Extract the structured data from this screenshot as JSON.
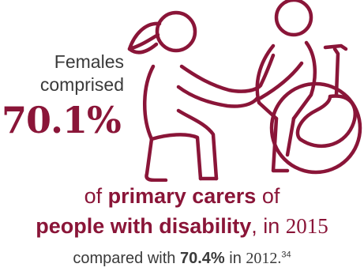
{
  "colors": {
    "accent": "#8a1538",
    "text": "#3a3a3a"
  },
  "illustration": {
    "icon": "carer-kneeling-beside-wheelchair-user-icon"
  },
  "stat": {
    "lead_line1": "Females",
    "lead_line2": "comprised",
    "value": "70.1%"
  },
  "headline": {
    "of": "of",
    "primary_carers": "primary carers",
    "of2": "of",
    "people_with_disability": "people with disability",
    "in": ", in",
    "year": "2015"
  },
  "comparison": {
    "prefix": "compared with",
    "value": "70.4%",
    "in": "in",
    "year": "2012.",
    "footnote": "34"
  }
}
